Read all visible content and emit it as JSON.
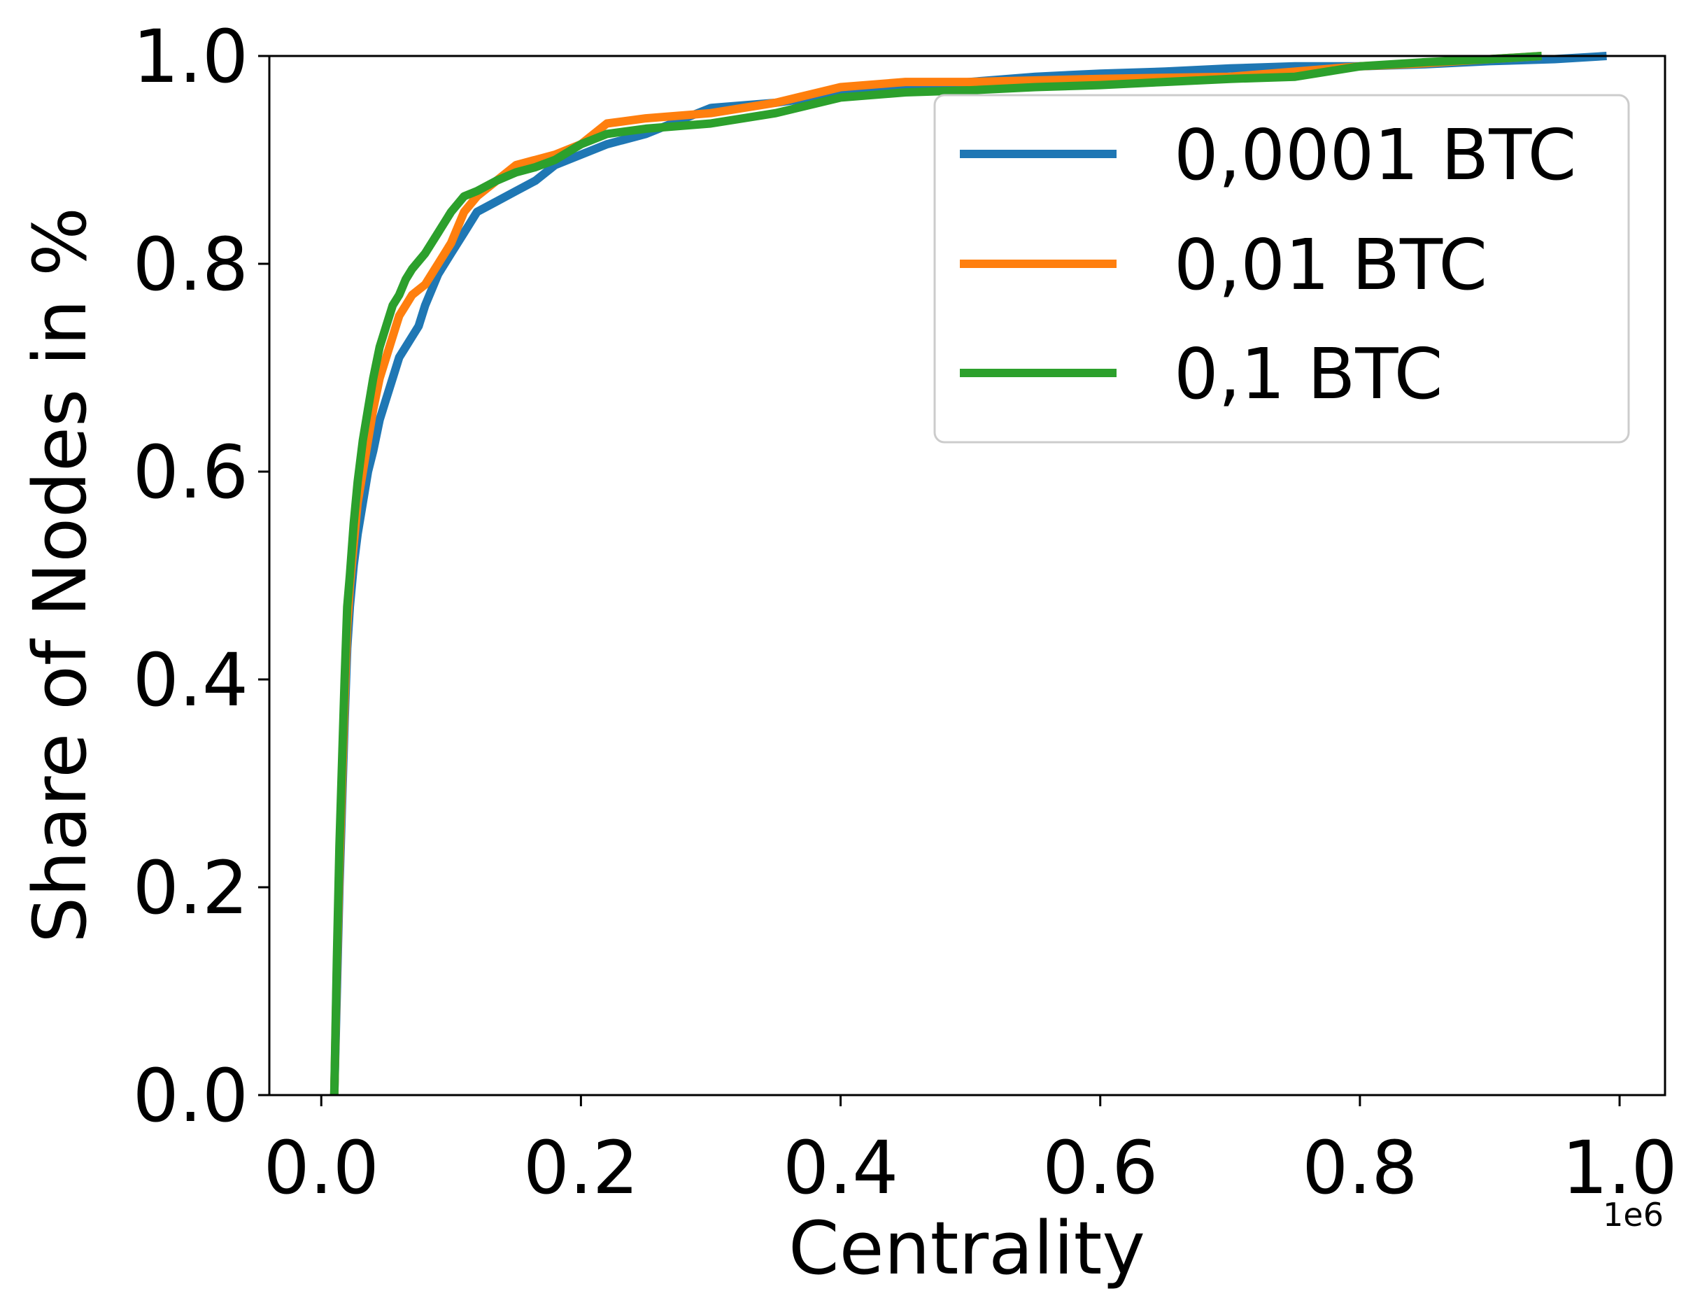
{
  "chart_data": {
    "type": "line",
    "xlabel": "Centrality",
    "ylabel": "Share of Nodes in %",
    "x_offset_label": "1e6",
    "xlim": [
      -0.04,
      1.035
    ],
    "ylim": [
      0.0,
      1.0
    ],
    "xticks": [
      0.0,
      0.2,
      0.4,
      0.6,
      0.8,
      1.0
    ],
    "xtick_labels": [
      "0.0",
      "0.2",
      "0.4",
      "0.6",
      "0.8",
      "1.0"
    ],
    "yticks": [
      0.0,
      0.2,
      0.4,
      0.6,
      0.8,
      1.0
    ],
    "ytick_labels": [
      "0.0",
      "0.2",
      "0.4",
      "0.6",
      "0.8",
      "1.0"
    ],
    "grid": false,
    "legend_position": "upper-right",
    "series": [
      {
        "name": "0,0001 BTC",
        "color": "#1f77b4",
        "x": [
          0.01,
          0.012,
          0.014,
          0.016,
          0.018,
          0.02,
          0.022,
          0.025,
          0.028,
          0.032,
          0.036,
          0.04,
          0.045,
          0.05,
          0.055,
          0.06,
          0.065,
          0.07,
          0.075,
          0.08,
          0.09,
          0.1,
          0.11,
          0.12,
          0.135,
          0.15,
          0.165,
          0.18,
          0.2,
          0.22,
          0.25,
          0.28,
          0.3,
          0.35,
          0.38,
          0.4,
          0.45,
          0.5,
          0.55,
          0.6,
          0.65,
          0.7,
          0.75,
          0.8,
          0.85,
          0.9,
          0.95,
          0.99
        ],
        "y": [
          0.0,
          0.1,
          0.2,
          0.28,
          0.36,
          0.43,
          0.47,
          0.51,
          0.54,
          0.57,
          0.6,
          0.62,
          0.65,
          0.67,
          0.69,
          0.71,
          0.72,
          0.73,
          0.74,
          0.76,
          0.79,
          0.81,
          0.83,
          0.85,
          0.86,
          0.87,
          0.88,
          0.895,
          0.905,
          0.915,
          0.925,
          0.94,
          0.95,
          0.955,
          0.96,
          0.965,
          0.97,
          0.975,
          0.98,
          0.983,
          0.985,
          0.988,
          0.99,
          0.99,
          0.992,
          0.995,
          0.997,
          1.0
        ]
      },
      {
        "name": "0,01 BTC",
        "color": "#ff7f0e",
        "x": [
          0.01,
          0.012,
          0.014,
          0.016,
          0.018,
          0.02,
          0.022,
          0.025,
          0.028,
          0.032,
          0.036,
          0.04,
          0.045,
          0.05,
          0.055,
          0.06,
          0.065,
          0.07,
          0.075,
          0.08,
          0.09,
          0.1,
          0.11,
          0.12,
          0.135,
          0.15,
          0.165,
          0.18,
          0.2,
          0.22,
          0.25,
          0.3,
          0.35,
          0.4,
          0.45,
          0.5,
          0.6,
          0.7,
          0.75,
          0.8,
          0.85,
          0.9,
          0.94
        ],
        "y": [
          0.0,
          0.12,
          0.22,
          0.3,
          0.38,
          0.45,
          0.49,
          0.53,
          0.57,
          0.6,
          0.63,
          0.66,
          0.69,
          0.71,
          0.73,
          0.75,
          0.76,
          0.77,
          0.775,
          0.78,
          0.8,
          0.82,
          0.85,
          0.865,
          0.88,
          0.895,
          0.9,
          0.905,
          0.915,
          0.935,
          0.94,
          0.945,
          0.955,
          0.97,
          0.975,
          0.975,
          0.978,
          0.98,
          0.985,
          0.99,
          0.993,
          0.997,
          1.0
        ]
      },
      {
        "name": "0,1 BTC",
        "color": "#2ca02c",
        "x": [
          0.01,
          0.012,
          0.014,
          0.016,
          0.018,
          0.02,
          0.022,
          0.025,
          0.028,
          0.032,
          0.036,
          0.04,
          0.045,
          0.05,
          0.055,
          0.06,
          0.065,
          0.07,
          0.08,
          0.09,
          0.1,
          0.11,
          0.12,
          0.135,
          0.15,
          0.165,
          0.18,
          0.2,
          0.22,
          0.25,
          0.3,
          0.35,
          0.4,
          0.45,
          0.5,
          0.55,
          0.6,
          0.65,
          0.7,
          0.75,
          0.8,
          0.85,
          0.9,
          0.94
        ],
        "y": [
          0.0,
          0.13,
          0.24,
          0.32,
          0.4,
          0.47,
          0.5,
          0.55,
          0.59,
          0.63,
          0.66,
          0.69,
          0.72,
          0.74,
          0.76,
          0.77,
          0.785,
          0.795,
          0.81,
          0.83,
          0.85,
          0.865,
          0.87,
          0.88,
          0.888,
          0.893,
          0.9,
          0.915,
          0.925,
          0.93,
          0.935,
          0.945,
          0.96,
          0.965,
          0.967,
          0.97,
          0.972,
          0.975,
          0.978,
          0.98,
          0.99,
          0.994,
          0.997,
          1.0
        ]
      }
    ]
  }
}
